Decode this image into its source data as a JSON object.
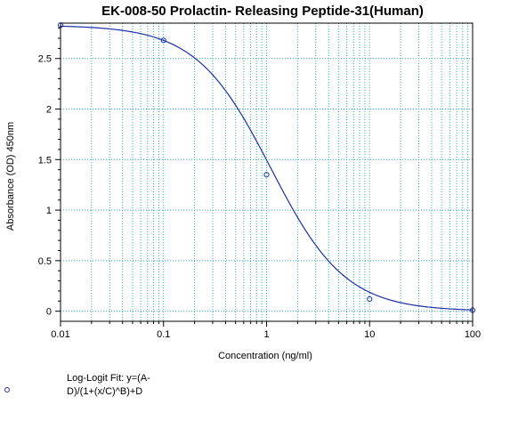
{
  "chart_data": {
    "type": "scatter",
    "title": "EK-008-50 Prolactin- Releasing Peptide-31(Human)",
    "xlabel": "Concentration (ng/ml)",
    "ylabel": "Absorbance (OD) 450nm",
    "x_scale": "log",
    "xlim": [
      0.01,
      100
    ],
    "ylim": [
      -0.1,
      2.85
    ],
    "x_ticks": [
      0.01,
      0.1,
      1,
      10,
      100
    ],
    "x_tick_labels": [
      "0.01",
      "0.1",
      "1",
      "10",
      "100"
    ],
    "y_ticks": [
      0,
      0.5,
      1,
      1.5,
      2,
      2.5
    ],
    "y_tick_labels": [
      "0",
      "0.5",
      "1",
      "1.5",
      "2",
      "2.5"
    ],
    "grid": true,
    "legend_position": "bottom-left",
    "series": [
      {
        "name": "Log-Logit Fit: y=(A-D)/(1+(x/C)^B)+D",
        "legend_lines": [
          "Log-Logit Fit: y=(A-",
          "D)/(1+(x/C)^B)+D"
        ],
        "color": "#1c2fa8",
        "marker": "open-circle",
        "x": [
          0.01,
          0.1,
          1,
          10,
          100
        ],
        "y": [
          2.83,
          2.68,
          1.35,
          0.12,
          0.01
        ]
      }
    ],
    "fit_curve": {
      "model": "4PL",
      "A": 2.83,
      "B": 1.2,
      "C": 1.1,
      "D": 0.0
    }
  }
}
